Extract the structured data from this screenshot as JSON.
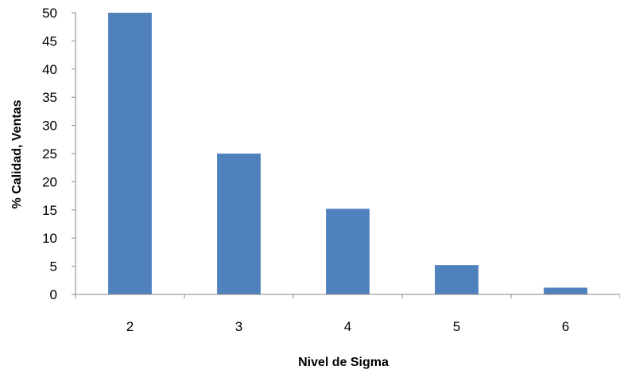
{
  "chart_data": {
    "type": "bar",
    "categories": [
      "2",
      "3",
      "4",
      "5",
      "6"
    ],
    "values": [
      50,
      25,
      15.2,
      5.2,
      1.2
    ],
    "xlabel": "Nivel de Sigma",
    "ylabel": "% Calidad,  Ventas",
    "ylim": [
      0,
      50
    ],
    "yticks": [
      0,
      5,
      10,
      15,
      20,
      25,
      30,
      35,
      40,
      45,
      50
    ],
    "grid": false,
    "legend": "none",
    "bar_color": "#4F81BD",
    "axis_color": "#868686"
  }
}
